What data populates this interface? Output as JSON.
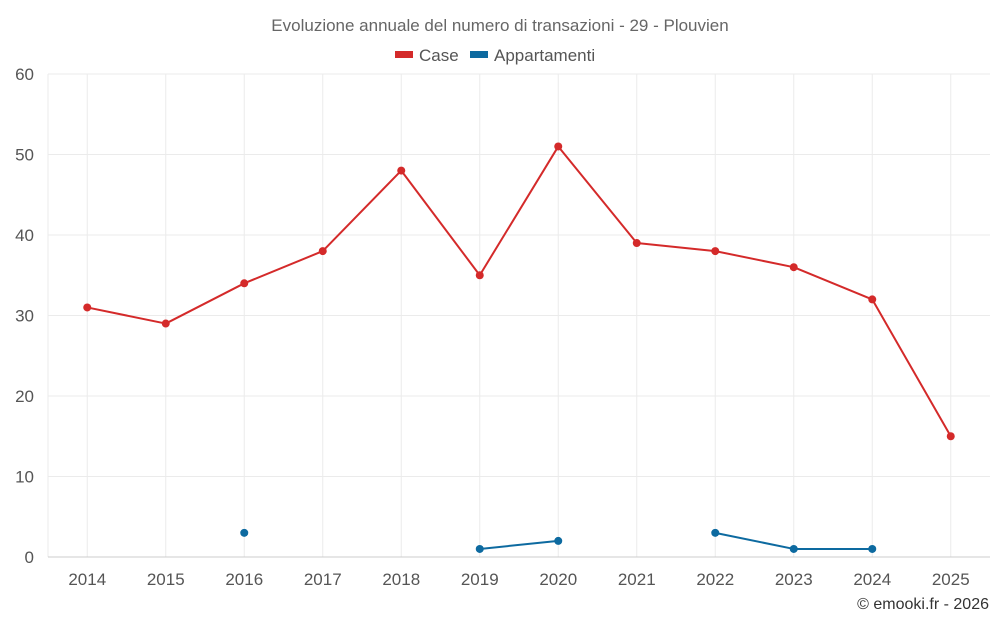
{
  "chart_data": {
    "type": "line",
    "title": "Evoluzione annuale del numero di transazioni - 29 - Plouvien",
    "categories": [
      "2014",
      "2015",
      "2016",
      "2017",
      "2018",
      "2019",
      "2020",
      "2021",
      "2022",
      "2023",
      "2024",
      "2025"
    ],
    "series": [
      {
        "name": "Case",
        "color": "#d42a2a",
        "values": [
          31,
          29,
          34,
          38,
          48,
          35,
          51,
          39,
          38,
          36,
          32,
          15
        ]
      },
      {
        "name": "Appartamenti",
        "color": "#0d6aa0",
        "values": [
          null,
          null,
          3,
          null,
          null,
          1,
          2,
          null,
          3,
          1,
          1,
          null
        ]
      }
    ],
    "y_ticks": [
      0,
      10,
      20,
      30,
      40,
      50,
      60
    ],
    "ylim": [
      0,
      60
    ],
    "legend_position": "top-center",
    "grid": true,
    "xlabel": "",
    "ylabel": ""
  },
  "credit": "© emooki.fr - 2026"
}
